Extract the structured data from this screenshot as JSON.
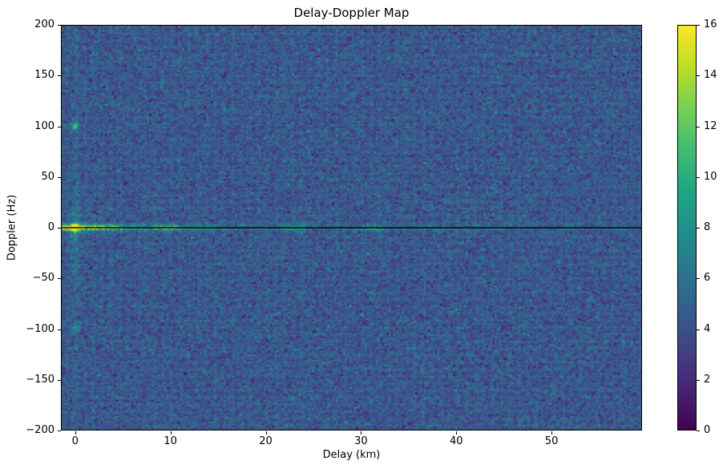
{
  "figure": {
    "background": "#ffffff"
  },
  "chart_data": {
    "type": "heatmap",
    "title": "Delay-Doppler Map",
    "xlabel": "Delay (km)",
    "ylabel": "Doppler (Hz)",
    "xlim": [
      -1.5,
      59.5
    ],
    "ylim": [
      -200,
      200
    ],
    "grid": false,
    "xticks": [
      {
        "value": 0,
        "label": "0"
      },
      {
        "value": 10,
        "label": "10"
      },
      {
        "value": 20,
        "label": "20"
      },
      {
        "value": 30,
        "label": "30"
      },
      {
        "value": 40,
        "label": "40"
      },
      {
        "value": 50,
        "label": "50"
      }
    ],
    "yticks": [
      {
        "value": 200,
        "label": "200"
      },
      {
        "value": 150,
        "label": "150"
      },
      {
        "value": 100,
        "label": "100"
      },
      {
        "value": 50,
        "label": "50"
      },
      {
        "value": 0,
        "label": "0"
      },
      {
        "value": -50,
        "label": "−50"
      },
      {
        "value": -100,
        "label": "−100"
      },
      {
        "value": -150,
        "label": "−150"
      },
      {
        "value": -200,
        "label": "−200"
      }
    ],
    "colorbar": {
      "min": 0,
      "max": 16,
      "ticks": [
        {
          "value": 16,
          "label": "16"
        },
        {
          "value": 14,
          "label": "14"
        },
        {
          "value": 12,
          "label": "12"
        },
        {
          "value": 10,
          "label": "10"
        },
        {
          "value": 8,
          "label": "8"
        },
        {
          "value": 6,
          "label": "6"
        },
        {
          "value": 4,
          "label": "4"
        },
        {
          "value": 2,
          "label": "2"
        },
        {
          "value": 0,
          "label": "0"
        }
      ],
      "position": "right"
    },
    "colormap": {
      "name": "viridis",
      "stops": [
        {
          "t": 0.0,
          "color": "#440154"
        },
        {
          "t": 0.1,
          "color": "#482475"
        },
        {
          "t": 0.2,
          "color": "#414487"
        },
        {
          "t": 0.3,
          "color": "#355f8d"
        },
        {
          "t": 0.4,
          "color": "#2a788e"
        },
        {
          "t": 0.5,
          "color": "#21918c"
        },
        {
          "t": 0.6,
          "color": "#22a884"
        },
        {
          "t": 0.7,
          "color": "#44bf70"
        },
        {
          "t": 0.8,
          "color": "#7ad151"
        },
        {
          "t": 0.9,
          "color": "#bddf26"
        },
        {
          "t": 1.0,
          "color": "#fde725"
        }
      ]
    },
    "background_noise": {
      "mean": 4.3,
      "std": 1.05
    },
    "features": {
      "specular_line": {
        "doppler_hz": 0,
        "core_sigma_hz": 1.8,
        "peak_amp": 11,
        "decay_km": 5,
        "base_amp": 2.6,
        "base_decay_km": 45,
        "spikes": [
          {
            "delay_km": 9.6,
            "amp": 3.2
          },
          {
            "delay_km": 10.6,
            "amp": 2.2
          },
          {
            "delay_km": 14.0,
            "amp": 1.4
          },
          {
            "delay_km": 22.8,
            "amp": 3.4
          },
          {
            "delay_km": 24.0,
            "amp": 1.6
          },
          {
            "delay_km": 31.0,
            "amp": 2.6
          },
          {
            "delay_km": 31.8,
            "amp": 1.8
          },
          {
            "delay_km": 37.0,
            "amp": 1.2
          },
          {
            "delay_km": 44.0,
            "amp": 1.0
          },
          {
            "delay_km": 52.0,
            "amp": 1.4
          },
          {
            "delay_km": 57.0,
            "amp": 1.2
          }
        ]
      },
      "axhline": {
        "doppler_hz": 0,
        "color": "#05060a"
      },
      "vertical_streak": {
        "delay_km": 0,
        "amp": 2.2,
        "doppler_decay_hz": 90
      },
      "point_targets": [
        {
          "delay_km": 0,
          "doppler_hz": 0,
          "peak_value": 16
        },
        {
          "delay_km": 0,
          "doppler_hz": 100,
          "peak_value": 11
        },
        {
          "delay_km": 0,
          "doppler_hz": -100,
          "peak_value": 7.5
        }
      ]
    }
  }
}
